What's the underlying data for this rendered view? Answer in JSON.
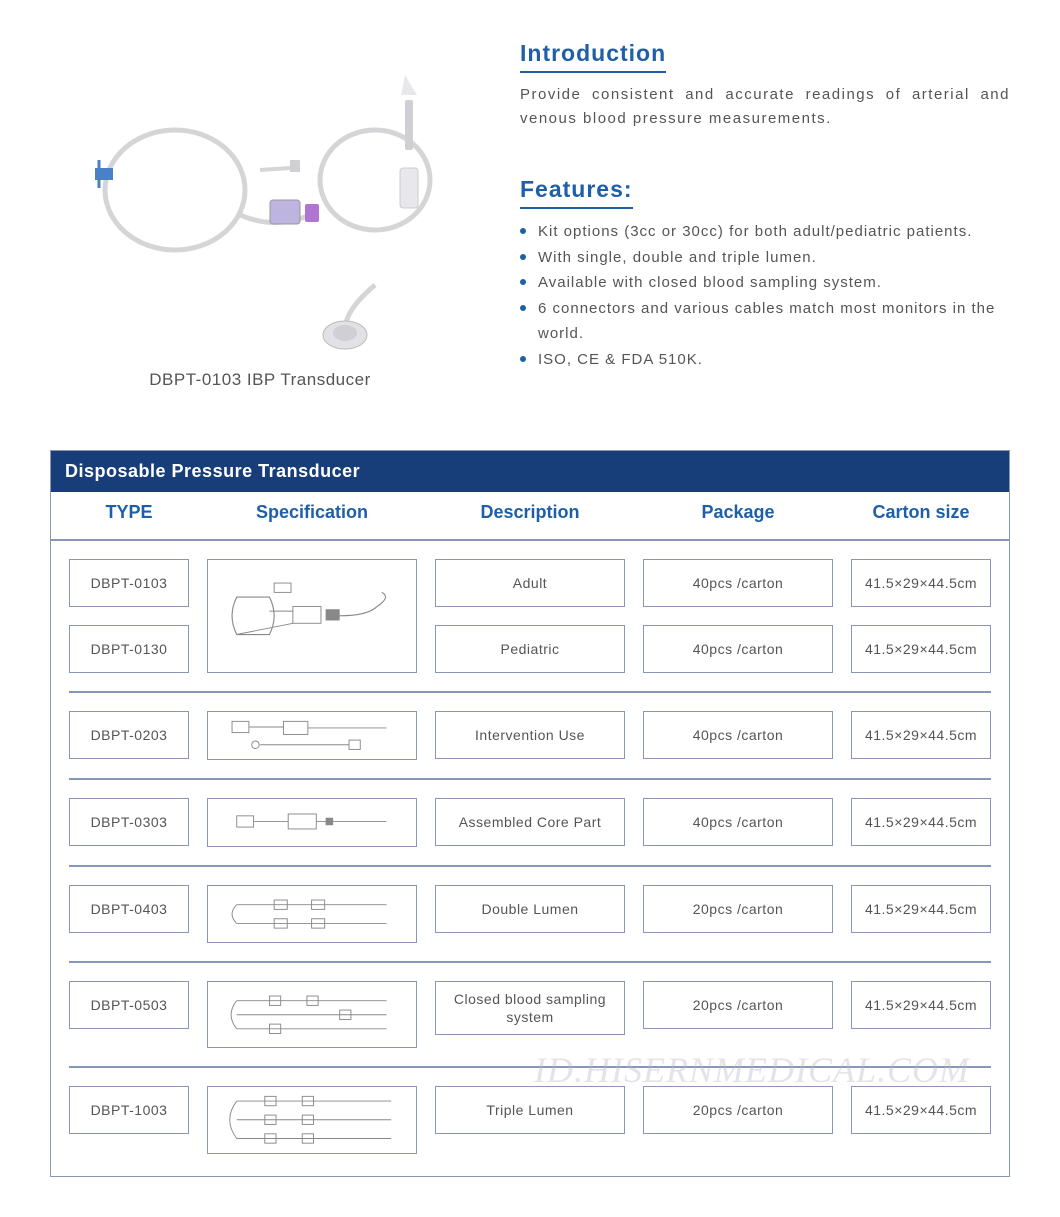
{
  "colors": {
    "heading": "#1e5fa8",
    "bullet": "#1e5fa8",
    "tableHeaderBg": "#183e7a",
    "tableHeaderText": "#1e5fa8",
    "border": "#8a96b8"
  },
  "product": {
    "caption": "DBPT-0103 IBP Transducer"
  },
  "intro": {
    "heading": "Introduction",
    "text": "Provide consistent and accurate readings of arterial and venous blood pressure measurements."
  },
  "features": {
    "heading": "Features:",
    "items": [
      "Kit options (3cc or 30cc) for both adult/pediatric patients.",
      "With single, double and triple lumen.",
      "Available with closed blood sampling system.",
      "6 connectors and various cables match most monitors in the world.",
      "ISO, CE & FDA 510K."
    ]
  },
  "table": {
    "title": "Disposable Pressure Transducer",
    "columns": [
      "TYPE",
      "Specification",
      "Description",
      "Package",
      "Carton  size"
    ],
    "groups": [
      {
        "types": [
          "DBPT-0103",
          "DBPT-0130"
        ],
        "specRows": 1,
        "descriptions": [
          "Adult",
          "Pediatric"
        ],
        "packages": [
          "40pcs /carton",
          "40pcs /carton"
        ],
        "cartons": [
          "41.5×29×44.5cm",
          "41.5×29×44.5cm"
        ]
      },
      {
        "types": [
          "DBPT-0203"
        ],
        "specRows": 1,
        "descriptions": [
          "Intervention Use"
        ],
        "packages": [
          "40pcs /carton"
        ],
        "cartons": [
          "41.5×29×44.5cm"
        ]
      },
      {
        "types": [
          "DBPT-0303"
        ],
        "specRows": 1,
        "descriptions": [
          "Assembled Core Part"
        ],
        "packages": [
          "40pcs /carton"
        ],
        "cartons": [
          "41.5×29×44.5cm"
        ]
      },
      {
        "types": [
          "DBPT-0403"
        ],
        "specRows": 1,
        "descriptions": [
          "Double Lumen"
        ],
        "packages": [
          "20pcs /carton"
        ],
        "cartons": [
          "41.5×29×44.5cm"
        ]
      },
      {
        "types": [
          "DBPT-0503"
        ],
        "specRows": 1,
        "descriptions": [
          "Closed blood sampling system"
        ],
        "packages": [
          "20pcs /carton"
        ],
        "cartons": [
          "41.5×29×44.5cm"
        ]
      },
      {
        "types": [
          "DBPT-1003"
        ],
        "specRows": 1,
        "descriptions": [
          "Triple Lumen"
        ],
        "packages": [
          "20pcs /carton"
        ],
        "cartons": [
          "41.5×29×44.5cm"
        ]
      }
    ]
  },
  "watermark": "ID.HISERNMEDICAL.COM"
}
